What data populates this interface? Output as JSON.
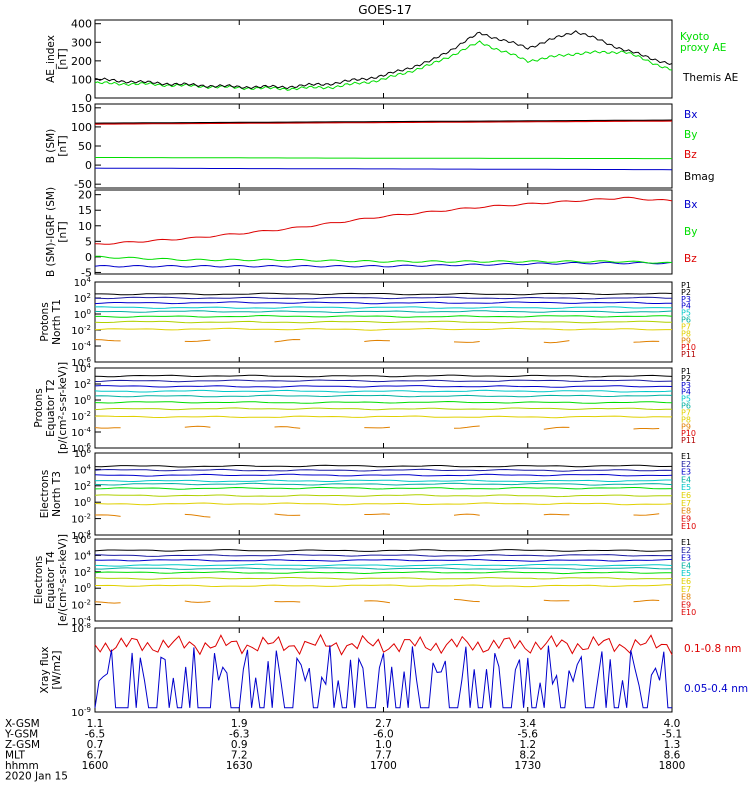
{
  "title": "GOES-17",
  "colors": {
    "black": "#000000",
    "green": "#00dd00",
    "red": "#dd0000",
    "blue": "#0000cc",
    "darkblue": "#1a1aa0",
    "cyan": "#00c8c8",
    "teal": "#00b0a0",
    "lime": "#00dd00",
    "yellowgreen": "#b0d000",
    "yellow": "#e0d000",
    "orange": "#e08000",
    "darkred": "#b00000"
  },
  "panels": {
    "ae": {
      "ylabel": [
        "AE_index",
        "[nT]"
      ],
      "ticks": [
        "400",
        "300",
        "200",
        "100",
        "0"
      ],
      "legend": [
        "Kyoto",
        "proxy AE",
        "Themis AE"
      ]
    },
    "bsm": {
      "ylabel": [
        "B (SM)",
        "[nT]"
      ],
      "ticks": [
        "150",
        "100",
        "50",
        "0",
        "-50"
      ],
      "legend": [
        "Bx",
        "By",
        "Bz",
        "Bmag"
      ]
    },
    "bigrf": {
      "ylabel": [
        "B (SM)-IGRF (SM)",
        "[nT]"
      ],
      "ticks": [
        "20",
        "15",
        "10",
        "5",
        "0",
        "-5"
      ],
      "legend": [
        "Bx",
        "By",
        "Bz"
      ]
    },
    "prot1": {
      "ylabel": [
        "Protons",
        "North T1"
      ],
      "legend": [
        "P1",
        "P2",
        "P3",
        "P4",
        "P5",
        "P6",
        "P7",
        "P8",
        "P9",
        "P10",
        "P11"
      ]
    },
    "prot2": {
      "ylabel": [
        "Protons",
        "Equator T2",
        "[p/(cm²-s-sr-keV)]"
      ],
      "legend": [
        "P1",
        "P2",
        "P3",
        "P4",
        "P5",
        "P6",
        "P7",
        "P8",
        "P9",
        "P10",
        "P11"
      ]
    },
    "elec1": {
      "ylabel": [
        "Electrons",
        "North T3"
      ],
      "legend": [
        "E1",
        "E2",
        "E3",
        "E4",
        "E5",
        "E6",
        "E7",
        "E8",
        "E9",
        "E10"
      ]
    },
    "elec2": {
      "ylabel": [
        "Electrons",
        "Equator T4",
        "[e/(cm²-s-sr-keV)]"
      ],
      "legend": [
        "E1",
        "E2",
        "E3",
        "E4",
        "E5",
        "E6",
        "E7",
        "E8",
        "E9",
        "E10"
      ]
    },
    "xray": {
      "ylabel": [
        "Xray flux",
        "[W/m2]"
      ],
      "legend": [
        "0.1-0.8 nm",
        "0.05-0.4 nm"
      ]
    }
  },
  "footer": {
    "rows": [
      {
        "label": "X-GSM",
        "values": [
          "1.1",
          "1.9",
          "2.7",
          "3.4",
          "4.0"
        ]
      },
      {
        "label": "Y-GSM",
        "values": [
          "-6.5",
          "-6.3",
          "-6.0",
          "-5.6",
          "-5.1"
        ]
      },
      {
        "label": "Z-GSM",
        "values": [
          "0.7",
          "0.9",
          "1.0",
          "1.2",
          "1.3"
        ]
      },
      {
        "label": "MLT",
        "values": [
          "6.7",
          "7.2",
          "7.7",
          "8.2",
          "8.6"
        ]
      },
      {
        "label": "hhmm",
        "values": [
          "1600",
          "1630",
          "1700",
          "1730",
          "1800"
        ]
      }
    ],
    "date": "2020 Jan 15"
  },
  "chart_data": [
    {
      "type": "line",
      "title": "GOES-17",
      "ylabel": "AE_index [nT]",
      "ylim": [
        0,
        420
      ],
      "x": [
        0,
        10,
        20,
        30,
        40,
        50,
        60,
        70,
        80,
        90,
        100,
        110,
        120
      ],
      "xlabel": "hhmm 1600-1800 (minutes from 1600)",
      "series": [
        {
          "name": "Kyoto proxy AE",
          "color": "green",
          "values": [
            80,
            75,
            65,
            55,
            50,
            60,
            100,
            180,
            300,
            200,
            240,
            250,
            150
          ]
        },
        {
          "name": "Themis AE",
          "color": "black",
          "values": [
            100,
            85,
            70,
            60,
            60,
            80,
            120,
            200,
            350,
            270,
            360,
            260,
            180
          ]
        }
      ]
    },
    {
      "type": "line",
      "ylabel": "B (SM) [nT]",
      "ylim": [
        -60,
        160
      ],
      "x": [
        0,
        60,
        120
      ],
      "series": [
        {
          "name": "Bx",
          "color": "blue",
          "values": [
            -8,
            -10,
            -12
          ]
        },
        {
          "name": "By",
          "color": "green",
          "values": [
            20,
            18,
            17
          ]
        },
        {
          "name": "Bz",
          "color": "red",
          "values": [
            108,
            112,
            116
          ]
        },
        {
          "name": "Bmag",
          "color": "black",
          "values": [
            110,
            114,
            118
          ]
        }
      ]
    },
    {
      "type": "line",
      "ylabel": "B (SM)-IGRF (SM) [nT]",
      "ylim": [
        -5,
        21
      ],
      "x": [
        0,
        20,
        40,
        60,
        80,
        100,
        110,
        120
      ],
      "series": [
        {
          "name": "Bx",
          "color": "blue",
          "values": [
            -3,
            -3,
            -3,
            -3,
            -2.5,
            -2,
            -2,
            -2
          ]
        },
        {
          "name": "By",
          "color": "green",
          "values": [
            0,
            -1,
            -1,
            -1.5,
            -1.5,
            -1.5,
            -1.5,
            -2
          ]
        },
        {
          "name": "Bz",
          "color": "red",
          "values": [
            4,
            6,
            9,
            13,
            16,
            18,
            19,
            18
          ]
        }
      ]
    },
    {
      "type": "line",
      "ylabel": "Protons North T1",
      "yscale": "log",
      "ylim_exp": [
        -6,
        4
      ],
      "tick_exponents": [
        4,
        2,
        0,
        -2,
        -4,
        -6
      ],
      "series_exponents": [
        2.5,
        2,
        1.4,
        0.8,
        0.3,
        -0.3,
        -1.0,
        -1.9,
        -3.4
      ]
    },
    {
      "type": "line",
      "ylabel": "Protons Equator T2 [p/(cm²-s-sr-keV)]",
      "yscale": "log",
      "ylim_exp": [
        -6,
        4
      ],
      "tick_exponents": [
        4,
        2,
        0,
        -2,
        -4,
        -6
      ],
      "series_exponents": [
        3.0,
        2.4,
        1.7,
        1.1,
        0.5,
        -0.3,
        -1.1,
        -2.1,
        -3.5
      ]
    },
    {
      "type": "line",
      "ylabel": "Electrons North T3",
      "yscale": "log",
      "ylim_exp": [
        -4,
        6
      ],
      "tick_exponents": [
        6,
        4,
        2,
        0,
        -2,
        -4
      ],
      "series_exponents": [
        4.4,
        3.9,
        3.3,
        2.6,
        2.2,
        1.7,
        0.8,
        -0.2,
        -1.6
      ]
    },
    {
      "type": "line",
      "ylabel": "Electrons Equator T4 [e/(cm²-s-sr-keV)]",
      "yscale": "log",
      "ylim_exp": [
        -4,
        6
      ],
      "tick_exponents": [
        6,
        4,
        2,
        0,
        -2,
        -4
      ],
      "series_exponents": [
        4.6,
        4.0,
        3.4,
        2.8,
        2.4,
        1.9,
        1.2,
        0.3,
        -1.6
      ]
    },
    {
      "type": "line",
      "ylabel": "Xray flux [W/m2]",
      "yscale": "log",
      "ylim_exp": [
        -9,
        -8
      ],
      "tick_exponents": [
        -8,
        -9
      ],
      "series": [
        {
          "name": "0.1-0.8 nm",
          "color": "red",
          "level": 0.2
        },
        {
          "name": "0.05-0.4 nm",
          "color": "blue",
          "level": 0.95
        }
      ]
    }
  ]
}
